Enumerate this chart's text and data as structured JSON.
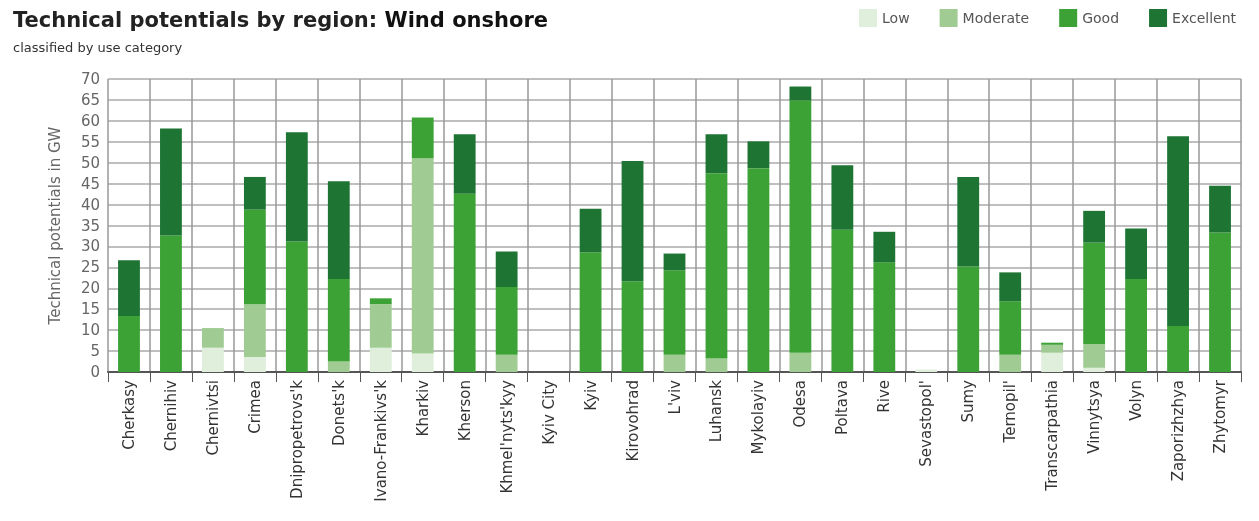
{
  "chart_data": {
    "type": "bar",
    "title": "Technical potentials by region: Wind onshore",
    "subtitle": "classified by use category",
    "ylabel": "Technical potentials in GW",
    "categories": [
      "Cherkasy",
      "Chernihiv",
      "Chernivtsi",
      "Crimea",
      "Dnipropetrovs'k",
      "Donets'k",
      "Ivano-Frankivs'k",
      "Kharkiv",
      "Kherson",
      "Khmel'nyts'kyy",
      "Kyiv City",
      "Kyiv",
      "Kirovohrad",
      "L'viv",
      "Luhansk",
      "Mykolayiv",
      "Odesa",
      "Poltava",
      "Rive",
      "Sevastopol'",
      "Sumy",
      "Ternopil'",
      "Transcarpathia",
      "Vinnytsya",
      "Volyn",
      "Zaporizhzhya",
      "Zhytomyr"
    ],
    "stacked": true,
    "series": [
      {
        "name": "Low",
        "color": "#e0eedc",
        "values": [
          0,
          0,
          5.8,
          3.6,
          0,
          0,
          5.8,
          4.4,
          0,
          0,
          0,
          0,
          0,
          0,
          0,
          0,
          0,
          0,
          0,
          0.6,
          0,
          0,
          4.6,
          1.0,
          0,
          0,
          0
        ]
      },
      {
        "name": "Moderate",
        "color": "#a0cc94",
        "values": [
          0,
          0,
          4.7,
          12.6,
          0,
          2.5,
          10.4,
          46.7,
          0,
          4.1,
          0,
          0,
          0,
          4.1,
          3.2,
          0,
          4.6,
          0,
          0,
          0,
          0,
          4.1,
          1.9,
          5.7,
          0,
          0,
          0
        ]
      },
      {
        "name": "Good",
        "color": "#3ca236",
        "values": [
          13.4,
          32.6,
          0,
          22.6,
          31.2,
          19.7,
          1.4,
          9.7,
          42.6,
          16.2,
          0,
          28.6,
          21.7,
          20.2,
          44.3,
          48.7,
          60.3,
          34.0,
          26.2,
          0,
          25.2,
          12.8,
          0.5,
          24.2,
          22.2,
          11.0,
          33.3
        ]
      },
      {
        "name": "Excellent",
        "color": "#1d7433",
        "values": [
          13.3,
          25.6,
          0,
          7.8,
          26.1,
          23.4,
          0,
          0,
          14.2,
          8.5,
          0,
          10.4,
          28.7,
          4.0,
          9.3,
          6.4,
          3.3,
          15.4,
          7.3,
          0,
          21.4,
          6.9,
          0,
          7.6,
          12.1,
          45.3,
          11.2
        ]
      }
    ],
    "ylim": [
      0,
      70
    ],
    "yticks": [
      0,
      5,
      10,
      15,
      20,
      25,
      30,
      35,
      40,
      45,
      50,
      55,
      60,
      65,
      70
    ],
    "grid": true,
    "legend": "top right"
  }
}
